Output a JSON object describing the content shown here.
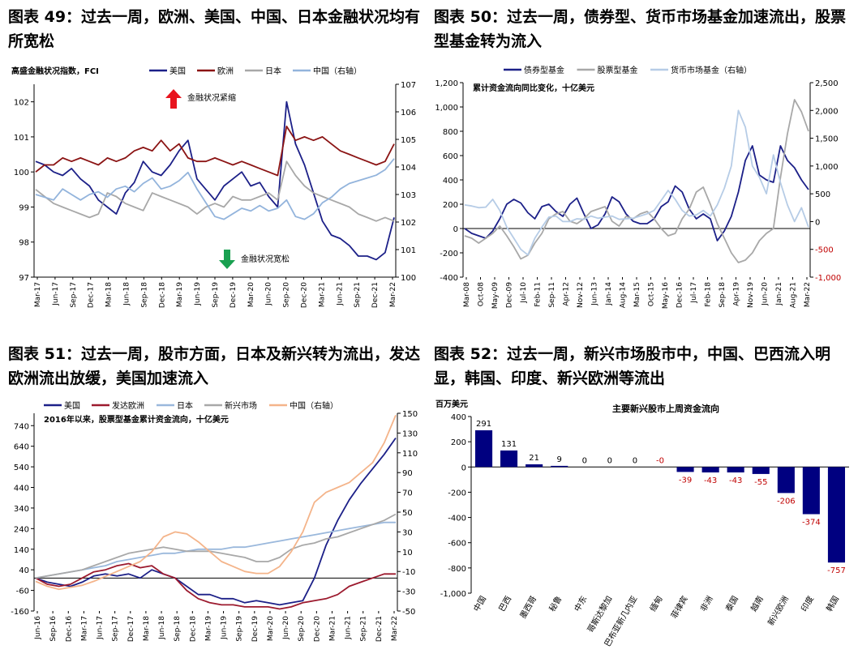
{
  "chart_data": [
    {
      "type": "line",
      "title": "图表 49：过去一周，欧洲、美国、中国、日本金融状况均有所宽松",
      "ylabel": "高盛金融状况指数，FCI",
      "ylim": [
        97,
        102.5
      ],
      "y2lim": [
        100,
        107
      ],
      "yticks": [
        "102",
        "101",
        "100",
        "99",
        "98",
        "97"
      ],
      "y2ticks": [
        "107",
        "106",
        "105",
        "104",
        "103",
        "102",
        "101",
        "100"
      ],
      "xticks": [
        "Mar-17",
        "Jun-17",
        "Sep-17",
        "Dec-17",
        "Mar-18",
        "Jun-18",
        "Sep-18",
        "Dec-18",
        "Mar-19",
        "Jun-19",
        "Sep-19",
        "Dec-19",
        "Mar-20",
        "Jun-20",
        "Sep-20",
        "Dec-20",
        "Mar-21",
        "Jun-21",
        "Sep-21",
        "Dec-21",
        "Mar-22"
      ],
      "legend": [
        "美国",
        "欧洲",
        "日本",
        "中国（右轴）"
      ],
      "annotations": [
        "金融状况紧缩",
        "金融状况宽松"
      ],
      "colors": {
        "us": "#1c2088",
        "eu": "#8b1414",
        "jp": "#a8a8a8",
        "cn": "#93b4dc",
        "up": "#e8141e",
        "down": "#19a050"
      },
      "series": [
        {
          "name": "美国",
          "values": [
            100.3,
            100.2,
            100.0,
            99.9,
            100.1,
            99.8,
            99.6,
            99.2,
            99.0,
            98.8,
            99.4,
            99.7,
            100.3,
            100.0,
            99.9,
            100.2,
            100.6,
            100.9,
            99.8,
            99.5,
            99.2,
            99.6,
            99.8,
            100.0,
            99.6,
            99.7,
            99.3,
            99.0,
            102.0,
            100.8,
            100.2,
            99.4,
            98.6,
            98.2,
            98.1,
            97.9,
            97.6,
            97.6,
            97.5,
            97.7,
            98.7
          ]
        },
        {
          "name": "欧洲",
          "values": [
            100.0,
            100.2,
            100.2,
            100.4,
            100.3,
            100.4,
            100.3,
            100.2,
            100.4,
            100.3,
            100.4,
            100.6,
            100.7,
            100.6,
            100.9,
            100.6,
            100.8,
            100.4,
            100.3,
            100.3,
            100.4,
            100.3,
            100.2,
            100.3,
            100.2,
            100.1,
            100.0,
            99.9,
            101.3,
            100.9,
            101.0,
            100.9,
            101.0,
            100.8,
            100.6,
            100.5,
            100.4,
            100.3,
            100.2,
            100.3,
            100.8
          ]
        },
        {
          "name": "日本",
          "values": [
            99.5,
            99.3,
            99.1,
            99.0,
            98.9,
            98.8,
            98.7,
            98.8,
            99.4,
            99.3,
            99.1,
            99.0,
            98.9,
            99.4,
            99.3,
            99.2,
            99.1,
            99.0,
            98.8,
            99.0,
            99.1,
            99.0,
            99.3,
            99.2,
            99.2,
            99.3,
            99.4,
            99.2,
            100.3,
            99.9,
            99.6,
            99.4,
            99.3,
            99.2,
            99.1,
            99.0,
            98.8,
            98.7,
            98.6,
            98.7,
            98.6
          ]
        },
        {
          "name": "中国（右轴）",
          "values": [
            103.0,
            102.9,
            102.8,
            103.2,
            103.0,
            102.8,
            103.0,
            103.1,
            102.9,
            103.2,
            103.3,
            103.1,
            103.4,
            103.6,
            103.2,
            103.3,
            103.5,
            103.8,
            103.2,
            102.7,
            102.2,
            102.1,
            102.3,
            102.5,
            102.4,
            102.6,
            102.4,
            102.5,
            102.8,
            102.2,
            102.1,
            102.3,
            102.7,
            102.9,
            103.2,
            103.4,
            103.5,
            103.6,
            103.7,
            103.9,
            104.3
          ]
        }
      ]
    },
    {
      "type": "line",
      "title": "图表 50：过去一周，债券型、货币市场基金加速流出，股票型基金转为流入",
      "subtitle": "累计资金流向同比变化，十亿美元",
      "ylim": [
        -400,
        1200
      ],
      "y2lim": [
        -1000,
        2500
      ],
      "yticks": [
        "1,200",
        "1,000",
        "800",
        "600",
        "400",
        "200",
        "0",
        "-200",
        "-400"
      ],
      "y2ticks": [
        "2,500",
        "2,000",
        "1,500",
        "1,000",
        "500",
        "0",
        "-500",
        "-1,000"
      ],
      "xticks": [
        "Mar-08",
        "Oct-08",
        "May-09",
        "Dec-09",
        "Jul-10",
        "Feb-11",
        "Sep-11",
        "Apr-12",
        "Nov-12",
        "Jun-13",
        "Jan-14",
        "Aug-14",
        "Mar-15",
        "Oct-15",
        "May-16",
        "Dec-16",
        "Jul-17",
        "Feb-18",
        "Sep-18",
        "Apr-19",
        "Nov-19",
        "Jun-20",
        "Jan-21",
        "Aug-21",
        "Mar-22"
      ],
      "legend": [
        "债券型基金",
        "股票型基金",
        "货币市场基金（右轴）"
      ],
      "colors": {
        "bond": "#1c2088",
        "equity": "#a8a8a8",
        "mm": "#b6cce6",
        "right_axis": "#c00000"
      },
      "series": [
        {
          "name": "债券型基金",
          "values": [
            0,
            -40,
            -60,
            -80,
            -20,
            80,
            200,
            240,
            210,
            130,
            80,
            180,
            200,
            140,
            100,
            200,
            250,
            120,
            0,
            30,
            120,
            260,
            220,
            120,
            60,
            40,
            40,
            80,
            180,
            220,
            350,
            300,
            160,
            80,
            120,
            80,
            -100,
            -20,
            100,
            300,
            560,
            680,
            440,
            400,
            380,
            680,
            560,
            500,
            400,
            320
          ]
        },
        {
          "name": "股票型基金",
          "values": [
            -60,
            -80,
            -120,
            -80,
            -40,
            20,
            -60,
            -150,
            -250,
            -220,
            -120,
            -40,
            80,
            120,
            140,
            60,
            40,
            80,
            140,
            160,
            180,
            60,
            20,
            100,
            80,
            120,
            140,
            80,
            0,
            -60,
            -40,
            80,
            160,
            300,
            340,
            200,
            40,
            -80,
            -200,
            -280,
            -260,
            -200,
            -100,
            -40,
            0,
            420,
            780,
            1060,
            960,
            800
          ]
        },
        {
          "name": "货币市场基金（右轴）",
          "values": [
            300,
            280,
            250,
            260,
            400,
            200,
            -100,
            -300,
            -500,
            -600,
            -300,
            -100,
            80,
            100,
            0,
            0,
            50,
            40,
            100,
            60,
            80,
            100,
            40,
            50,
            60,
            100,
            140,
            200,
            380,
            560,
            400,
            200,
            100,
            120,
            200,
            100,
            300,
            600,
            1000,
            2000,
            1700,
            1000,
            800,
            500,
            1200,
            700,
            300,
            0,
            250,
            -100
          ]
        }
      ]
    },
    {
      "type": "line",
      "title": "图表 51：过去一周，股市方面，日本及新兴转为流出，发达欧洲流出放缓，美国加速流入",
      "subtitle": "2016年以来，股票型基金累计资金流向，十亿美元",
      "ylim": [
        -160,
        800
      ],
      "y2lim": [
        -50,
        150
      ],
      "yticks": [
        "740",
        "640",
        "540",
        "440",
        "340",
        "240",
        "140",
        "40",
        "-60",
        "-160"
      ],
      "y2ticks": [
        "150",
        "130",
        "110",
        "90",
        "70",
        "50",
        "30",
        "10",
        "-10",
        "-30",
        "-50"
      ],
      "xticks": [
        "Jun-16",
        "Sep-16",
        "Dec-16",
        "Mar-17",
        "Jun-17",
        "Sep-17",
        "Dec-17",
        "Mar-18",
        "Jun-18",
        "Sep-18",
        "Dec-18",
        "Mar-19",
        "Jun-19",
        "Sep-19",
        "Dec-19",
        "Mar-20",
        "Jun-20",
        "Sep-20",
        "Dec-20",
        "Mar-21",
        "Jun-21",
        "Sep-21",
        "Dec-21",
        "Mar-22"
      ],
      "legend": [
        "美国",
        "发达欧洲",
        "日本",
        "新兴市场",
        "中国（右轴）"
      ],
      "colors": {
        "us": "#1c2088",
        "eu": "#9c1a2e",
        "jp": "#9ab8dc",
        "em": "#a8a8a8",
        "cn": "#f4b48a"
      },
      "series": [
        {
          "name": "美国",
          "values": [
            0,
            -20,
            -30,
            -40,
            -20,
            10,
            20,
            10,
            20,
            0,
            40,
            20,
            0,
            -40,
            -80,
            -80,
            -100,
            -100,
            -120,
            -110,
            -120,
            -130,
            -120,
            -110,
            0,
            160,
            280,
            380,
            460,
            530,
            600,
            680
          ]
        },
        {
          "name": "发达欧洲",
          "values": [
            0,
            -30,
            -40,
            -30,
            0,
            30,
            40,
            60,
            70,
            50,
            60,
            20,
            0,
            -60,
            -100,
            -120,
            -130,
            -130,
            -140,
            -140,
            -140,
            -150,
            -140,
            -120,
            -110,
            -100,
            -80,
            -40,
            -20,
            0,
            20,
            20
          ]
        },
        {
          "name": "日本",
          "values": [
            0,
            10,
            20,
            30,
            40,
            50,
            60,
            80,
            90,
            100,
            110,
            120,
            120,
            130,
            140,
            140,
            140,
            150,
            150,
            160,
            170,
            180,
            190,
            200,
            210,
            220,
            230,
            240,
            250,
            260,
            270,
            270
          ]
        },
        {
          "name": "新兴市场",
          "values": [
            0,
            10,
            20,
            30,
            40,
            60,
            80,
            100,
            120,
            130,
            140,
            150,
            140,
            130,
            130,
            130,
            120,
            110,
            100,
            80,
            80,
            100,
            140,
            160,
            170,
            190,
            200,
            220,
            240,
            260,
            280,
            310
          ]
        },
        {
          "name": "中国（右轴）",
          "values": [
            -20,
            -25,
            -28,
            -26,
            -24,
            -20,
            -15,
            -10,
            -5,
            0,
            10,
            25,
            30,
            28,
            20,
            10,
            0,
            -5,
            -10,
            -12,
            -12,
            -5,
            10,
            30,
            60,
            70,
            75,
            80,
            90,
            100,
            120,
            148
          ]
        }
      ]
    },
    {
      "type": "bar",
      "title": "图表 52：过去一周，新兴市场股市中，中国、巴西流入明显，韩国、印度、新兴欧洲等流出",
      "subtitle": "主要新兴股市上周资金流向",
      "ylabel": "百万美元",
      "ylim": [
        -1000,
        400
      ],
      "yticks": [
        "400",
        "200",
        "0",
        "-200",
        "-400",
        "-600",
        "-800",
        "-1,000"
      ],
      "categories": [
        "中国",
        "巴西",
        "墨西哥",
        "秘鲁",
        "中东",
        "哥斯达黎加",
        "巴布亚新几内亚",
        "缅甸",
        "菲律宾",
        "非洲",
        "泰国",
        "越南",
        "新兴欧洲",
        "印度",
        "韩国"
      ],
      "values": [
        291,
        131,
        21,
        9,
        0,
        0,
        0,
        0,
        -39,
        -43,
        -43,
        -55,
        -206,
        -374,
        -757
      ],
      "labels": [
        "291",
        "131",
        "21",
        "9",
        "0",
        "0",
        "0",
        "-0",
        "-39",
        "-43",
        "-43",
        "-55",
        "-206",
        "-374",
        "-757"
      ],
      "colors": {
        "bar": "#000080",
        "pos_label": "#000000",
        "neg_label": "#c00000"
      }
    }
  ]
}
